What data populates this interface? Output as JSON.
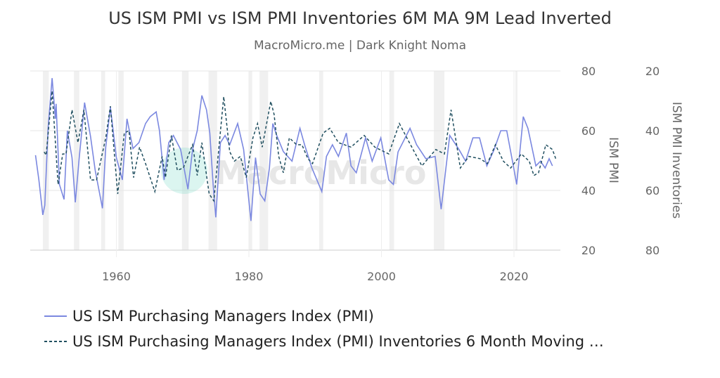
{
  "chart_data": {
    "type": "line",
    "title": "US ISM PMI vs ISM PMI Inventories 6M MA 9M Lead Inverted",
    "subtitle": "MacroMicro.me | Dark Knight Noma",
    "watermark": "MacroMicro",
    "xlim": [
      1947,
      2027
    ],
    "x_ticks": [
      "1960",
      "1980",
      "2000",
      "2020"
    ],
    "x_tick_values": [
      1960,
      1980,
      2000,
      2020
    ],
    "y_left": {
      "label": "ISM PMI",
      "lim": [
        20,
        80
      ],
      "ticks": [
        "80",
        "60",
        "40",
        "20"
      ],
      "tick_values": [
        80,
        60,
        40,
        20
      ]
    },
    "y_right": {
      "label": "ISM PMI Inventories",
      "lim": [
        20,
        80
      ],
      "inverted": true,
      "ticks": [
        "20",
        "40",
        "60",
        "80"
      ],
      "tick_values": [
        20,
        40,
        60,
        80
      ]
    },
    "grid": true,
    "legend_position": "bottom",
    "recessions": [
      [
        1948.9,
        1949.8
      ],
      [
        1953.6,
        1954.4
      ],
      [
        1957.7,
        1958.3
      ],
      [
        1960.3,
        1961.1
      ],
      [
        1969.9,
        1970.9
      ],
      [
        1973.9,
        1975.2
      ],
      [
        1980.0,
        1980.5
      ],
      [
        1981.6,
        1982.9
      ],
      [
        1990.6,
        1991.2
      ],
      [
        2001.2,
        2001.9
      ],
      [
        2007.9,
        2009.5
      ],
      [
        2020.2,
        2020.4
      ]
    ],
    "series": [
      {
        "name": "US ISM Purchasing Managers Index (PMI)",
        "axis": "left",
        "color": "#7b88e0",
        "dash": false,
        "x": [
          1947.8,
          1948.3,
          1948.9,
          1949.2,
          1949.7,
          1950.3,
          1950.8,
          1950.9,
          1951.4,
          1952.1,
          1952.6,
          1953.3,
          1953.8,
          1954.4,
          1955.2,
          1956.1,
          1956.8,
          1957.9,
          1958.4,
          1959.1,
          1960,
          1960.9,
          1961.6,
          1962.5,
          1963.4,
          1964.4,
          1965.1,
          1966,
          1966.5,
          1967.2,
          1967.9,
          1968.6,
          1969.7,
          1970.8,
          1971.5,
          1972.2,
          1972.9,
          1973.6,
          1974.1,
          1974.6,
          1975,
          1975.7,
          1976.4,
          1977.1,
          1978.3,
          1979.2,
          1980.3,
          1981,
          1981.7,
          1982.4,
          1983.1,
          1983.6,
          1984.2,
          1985.2,
          1986.5,
          1987.7,
          1988.4,
          1989.5,
          1991.0,
          1991.7,
          1992.6,
          1993.5,
          1994.7,
          1995.4,
          1996.2,
          1997.6,
          1998.6,
          1999.9,
          2001.1,
          2001.8,
          2002.5,
          2004.3,
          2005.3,
          2006.7,
          2008.1,
          2009.0,
          2010.3,
          2011.7,
          2012.7,
          2013.8,
          2014.8,
          2015.9,
          2017.0,
          2018.0,
          2018.9,
          2019.9,
          2020.4,
          2021.4,
          2022.1,
          2023.3,
          2024.0,
          2024.7,
          2025.3,
          2025.8
        ],
        "values": [
          51.8,
          43.5,
          31.8,
          35,
          60.8,
          77.6,
          64,
          69,
          42,
          37,
          60,
          51,
          36,
          51,
          69.4,
          58,
          46.7,
          34,
          54.5,
          67.8,
          51,
          43.5,
          64,
          54,
          56,
          62.4,
          64.7,
          66.3,
          60,
          43.5,
          56,
          58.4,
          53.7,
          40.4,
          53.7,
          60,
          71.8,
          67,
          59.2,
          42,
          31,
          56,
          58.4,
          55.3,
          62.4,
          53.7,
          29.8,
          51,
          38.8,
          36.5,
          47.5,
          62.4,
          58.4,
          53,
          49.8,
          60.8,
          55.3,
          47.5,
          39.6,
          51.4,
          55.3,
          51.4,
          59.2,
          48.2,
          45.9,
          57.6,
          49.8,
          57.6,
          43.5,
          42,
          52.9,
          60.8,
          55.3,
          50.6,
          51.4,
          33.7,
          58.4,
          53.7,
          49.8,
          57.6,
          57.6,
          48.2,
          53.7,
          60,
          60,
          48.2,
          42,
          64.7,
          60.8,
          48.2,
          49.8,
          47.5,
          50.6,
          48.2
        ]
      },
      {
        "name": "US ISM Purchasing Managers Index (PMI) Inventories 6 Month Moving …",
        "axis": "right",
        "color": "#1f4e5f",
        "dash": true,
        "x": [
          1949.1,
          1949.4,
          1950.3,
          1951.2,
          1951.9,
          1952.4,
          1953.3,
          1954.2,
          1955.1,
          1956.1,
          1957.0,
          1958.4,
          1959.1,
          1960.2,
          1961.2,
          1961.9,
          1962.6,
          1963.5,
          1964.4,
          1965.8,
          1966.9,
          1967.4,
          1968.3,
          1969.2,
          1970.1,
          1971.5,
          1972.2,
          1972.9,
          1974.0,
          1974.7,
          1976.2,
          1977.1,
          1977.8,
          1978.7,
          1979.6,
          1980.6,
          1981.3,
          1982.0,
          1983.3,
          1983.8,
          1984.5,
          1985.2,
          1986.1,
          1987.2,
          1988.0,
          1988.9,
          1989.6,
          1991.2,
          1992.2,
          1993.5,
          1995.4,
          1997.4,
          1999.0,
          2001.1,
          2002.7,
          2004.0,
          2006.1,
          2008.2,
          2009.5,
          2010.5,
          2011.9,
          2013.2,
          2014.9,
          2016.0,
          2017.2,
          2018.4,
          2019.5,
          2021.1,
          2022.3,
          2023.0,
          2023.7,
          2024.8,
          2025.8,
          2026.3
        ],
        "values": [
          47.1,
          48.2,
          26.7,
          58,
          47.8,
          47.8,
          33,
          44,
          33,
          56.5,
          56.5,
          42.4,
          31.8,
          61.2,
          40.8,
          40,
          55.7,
          45.5,
          51,
          60.4,
          48.6,
          55.7,
          41.6,
          53.3,
          52.5,
          44.7,
          55,
          44,
          61.2,
          63.5,
          28.6,
          47,
          50.2,
          48.6,
          55.7,
          42.4,
          37.6,
          45.5,
          30.2,
          34.5,
          48.6,
          54.1,
          42.4,
          44.7,
          44.7,
          49.4,
          51,
          40.8,
          39.2,
          44,
          45.5,
          41.6,
          45.5,
          47.8,
          37.6,
          43.1,
          51.8,
          46.3,
          47.8,
          33,
          52.5,
          48.6,
          49.4,
          51,
          44.7,
          50.2,
          52.5,
          47.8,
          50.2,
          55,
          54.1,
          44.7,
          46.3,
          49.4
        ]
      }
    ]
  }
}
